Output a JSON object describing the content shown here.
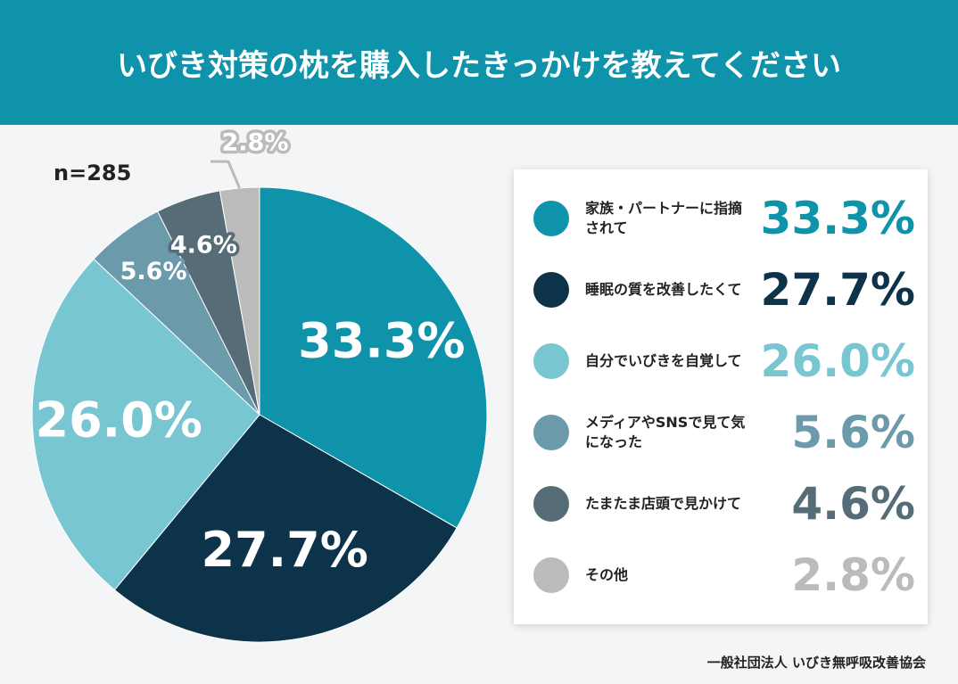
{
  "chart_data": {
    "type": "pie",
    "title": "いびき対策の枕を購入したきっかけを教えてください",
    "note": "n=285",
    "categories": [
      "家族・パートナーに指摘されて",
      "睡眠の質を改善したくて",
      "自分でいびきを自覚して",
      "メディアやSNSで見て気になった",
      "たまたま店頭で見かけて",
      "その他"
    ],
    "values": [
      33.3,
      27.7,
      26.0,
      5.6,
      4.6,
      2.8
    ],
    "value_labels": [
      "33.3%",
      "27.7%",
      "26.0%",
      "5.6%",
      "4.6%",
      "2.8%"
    ],
    "colors": [
      "#0e93ab",
      "#0c3349",
      "#79c6d3",
      "#6b9aab",
      "#566d78",
      "#bbbbbb"
    ],
    "source": "一般社団法人 いびき無呼吸改善協会"
  }
}
